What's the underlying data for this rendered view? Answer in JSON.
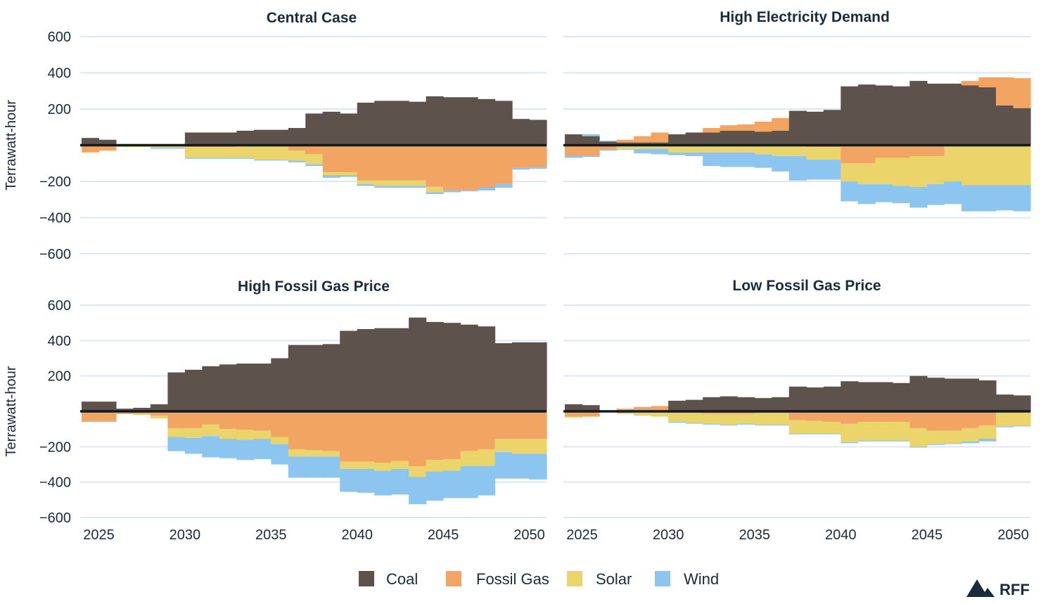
{
  "chart_data": {
    "type": "area",
    "style": "stacked step area, positive above zero and negative below zero",
    "colors": {
      "Coal": "#5e524c",
      "Fossil Gas": "#f2a462",
      "Solar": "#ebd56a",
      "Wind": "#8cc5ef",
      "zero_line": "#0d1b26",
      "grid": "#dde7f1"
    },
    "series_names": [
      "Coal",
      "Fossil Gas",
      "Solar",
      "Wind"
    ],
    "ylabel": "Terrawatt-hour",
    "ylim": [
      -600,
      600
    ],
    "yticks": [
      600,
      400,
      200,
      -200,
      -400,
      -600
    ],
    "ytick_labels": [
      "600",
      "400",
      "200",
      "−200",
      "−400",
      "−600"
    ],
    "xlim": [
      2024,
      2051
    ],
    "xticks": [
      2025,
      2030,
      2035,
      2040,
      2045,
      2050
    ],
    "xtick_labels": [
      "2025",
      "2030",
      "2035",
      "2040",
      "2045",
      "2050"
    ],
    "years": [
      2024,
      2025,
      2026,
      2027,
      2028,
      2029,
      2030,
      2031,
      2032,
      2033,
      2034,
      2035,
      2036,
      2037,
      2038,
      2039,
      2040,
      2041,
      2042,
      2043,
      2044,
      2045,
      2046,
      2047,
      2048,
      2049,
      2050
    ],
    "panels": [
      {
        "title": "Central Case",
        "positive": {
          "Coal": [
            40,
            30,
            0,
            0,
            0,
            0,
            70,
            70,
            70,
            80,
            85,
            85,
            95,
            175,
            185,
            175,
            235,
            245,
            245,
            240,
            270,
            265,
            265,
            255,
            245,
            145,
            140
          ],
          "Fossil Gas": [
            0,
            0,
            0,
            0,
            0,
            0,
            0,
            0,
            0,
            0,
            0,
            0,
            0,
            0,
            0,
            0,
            0,
            0,
            0,
            0,
            0,
            0,
            0,
            0,
            0,
            0,
            0
          ],
          "Solar": [
            0,
            0,
            0,
            0,
            0,
            0,
            0,
            0,
            0,
            0,
            0,
            0,
            0,
            0,
            0,
            0,
            0,
            0,
            0,
            0,
            0,
            0,
            0,
            0,
            0,
            0,
            0
          ],
          "Wind": [
            0,
            0,
            0,
            0,
            0,
            0,
            0,
            0,
            0,
            0,
            0,
            0,
            0,
            0,
            0,
            0,
            0,
            0,
            0,
            0,
            0,
            0,
            0,
            0,
            0,
            0,
            0
          ]
        },
        "negative": {
          "Coal": [
            0,
            0,
            0,
            0,
            0,
            0,
            0,
            0,
            0,
            0,
            0,
            0,
            0,
            0,
            0,
            0,
            0,
            0,
            0,
            0,
            0,
            0,
            0,
            0,
            0,
            0,
            0
          ],
          "Fossil Gas": [
            -40,
            -30,
            0,
            0,
            0,
            0,
            -10,
            -10,
            -10,
            0,
            0,
            0,
            -30,
            -50,
            -150,
            -150,
            -195,
            -195,
            -195,
            -195,
            -230,
            -250,
            -250,
            -235,
            -215,
            -125,
            -120
          ],
          "Solar": [
            0,
            0,
            -10,
            -10,
            -15,
            -15,
            -60,
            -60,
            -60,
            -70,
            -80,
            -80,
            -55,
            -55,
            -15,
            -15,
            -20,
            -30,
            -30,
            -30,
            -30,
            0,
            0,
            0,
            0,
            0,
            0
          ],
          "Wind": [
            0,
            0,
            0,
            0,
            -5,
            -5,
            -5,
            -5,
            -5,
            -5,
            -5,
            -5,
            -10,
            -10,
            -15,
            -10,
            -10,
            -10,
            -10,
            -10,
            -10,
            -10,
            -5,
            -15,
            -20,
            -10,
            -10
          ]
        }
      },
      {
        "title": "High Electricity Demand",
        "positive": {
          "Coal": [
            60,
            50,
            20,
            15,
            15,
            15,
            60,
            70,
            70,
            80,
            80,
            75,
            80,
            190,
            185,
            195,
            325,
            335,
            330,
            325,
            355,
            340,
            340,
            330,
            320,
            220,
            205
          ],
          "Fossil Gas": [
            0,
            0,
            0,
            15,
            35,
            55,
            0,
            0,
            25,
            30,
            35,
            55,
            70,
            0,
            0,
            0,
            0,
            0,
            0,
            0,
            0,
            0,
            0,
            25,
            55,
            155,
            165
          ],
          "Solar": [
            0,
            0,
            0,
            0,
            0,
            0,
            0,
            0,
            0,
            0,
            0,
            0,
            0,
            0,
            0,
            0,
            0,
            0,
            0,
            0,
            0,
            0,
            0,
            0,
            0,
            0,
            0
          ],
          "Wind": [
            0,
            10,
            5,
            0,
            0,
            0,
            0,
            0,
            0,
            0,
            0,
            0,
            0,
            0,
            0,
            0,
            0,
            0,
            0,
            0,
            0,
            0,
            0,
            0,
            0,
            0,
            0
          ]
        },
        "negative": {
          "Coal": [
            0,
            0,
            0,
            0,
            0,
            0,
            0,
            0,
            0,
            0,
            0,
            0,
            0,
            0,
            0,
            0,
            0,
            0,
            0,
            0,
            0,
            0,
            0,
            0,
            0,
            0,
            0
          ],
          "Fossil Gas": [
            -60,
            -60,
            -25,
            0,
            0,
            0,
            0,
            0,
            0,
            0,
            0,
            0,
            0,
            0,
            -10,
            -10,
            -100,
            -100,
            -70,
            -70,
            -60,
            -60,
            0,
            0,
            0,
            0,
            0
          ],
          "Solar": [
            0,
            0,
            0,
            -20,
            -20,
            -20,
            -40,
            -40,
            -40,
            -40,
            -40,
            -50,
            -60,
            -60,
            -70,
            -70,
            -100,
            -115,
            -145,
            -155,
            -170,
            -155,
            -200,
            -220,
            -220,
            -220,
            -220
          ],
          "Wind": [
            -10,
            -5,
            -5,
            -5,
            -25,
            -30,
            -15,
            -20,
            -75,
            -80,
            -80,
            -75,
            -85,
            -135,
            -110,
            -110,
            -110,
            -110,
            -100,
            -95,
            -115,
            -115,
            -125,
            -145,
            -145,
            -140,
            -145
          ]
        }
      },
      {
        "title": "High Fossil Gas Price",
        "positive": {
          "Coal": [
            55,
            55,
            15,
            20,
            40,
            220,
            235,
            255,
            265,
            270,
            270,
            300,
            375,
            375,
            380,
            455,
            465,
            470,
            470,
            530,
            505,
            500,
            490,
            480,
            385,
            390,
            390
          ],
          "Fossil Gas": [
            0,
            0,
            0,
            0,
            0,
            0,
            0,
            0,
            0,
            0,
            0,
            0,
            0,
            0,
            0,
            0,
            0,
            0,
            0,
            0,
            0,
            0,
            0,
            0,
            0,
            0,
            0
          ],
          "Solar": [
            0,
            0,
            0,
            0,
            0,
            0,
            0,
            0,
            0,
            0,
            0,
            0,
            0,
            0,
            0,
            0,
            0,
            0,
            0,
            0,
            0,
            0,
            0,
            0,
            0,
            0,
            0
          ],
          "Wind": [
            0,
            0,
            0,
            0,
            0,
            0,
            0,
            0,
            0,
            0,
            0,
            0,
            0,
            0,
            0,
            0,
            0,
            0,
            0,
            0,
            0,
            0,
            0,
            0,
            0,
            0,
            0
          ]
        },
        "negative": {
          "Coal": [
            0,
            0,
            0,
            0,
            0,
            0,
            0,
            0,
            0,
            0,
            0,
            0,
            0,
            0,
            0,
            0,
            0,
            0,
            0,
            0,
            0,
            0,
            0,
            0,
            0,
            0,
            0
          ],
          "Fossil Gas": [
            -55,
            -55,
            -15,
            -15,
            -25,
            -95,
            -95,
            -75,
            -100,
            -105,
            -110,
            -145,
            -215,
            -220,
            -225,
            -285,
            -285,
            -290,
            -280,
            -310,
            -275,
            -270,
            -225,
            -215,
            -155,
            -155,
            -155
          ],
          "Solar": [
            0,
            0,
            0,
            -5,
            -15,
            -50,
            -55,
            -65,
            -55,
            -55,
            -45,
            -40,
            -40,
            -35,
            -30,
            -40,
            -40,
            -45,
            -45,
            -60,
            -65,
            -65,
            -85,
            -95,
            -75,
            -85,
            -85
          ],
          "Wind": [
            -5,
            -5,
            0,
            0,
            0,
            -80,
            -90,
            -120,
            -110,
            -115,
            -115,
            -115,
            -120,
            -120,
            -120,
            -130,
            -135,
            -140,
            -145,
            -155,
            -165,
            -155,
            -180,
            -165,
            -150,
            -140,
            -145
          ]
        }
      },
      {
        "title": "Low Fossil Gas Price",
        "positive": {
          "Coal": [
            40,
            35,
            0,
            0,
            0,
            0,
            60,
            65,
            80,
            85,
            80,
            75,
            80,
            140,
            135,
            140,
            170,
            165,
            165,
            160,
            200,
            190,
            185,
            185,
            175,
            95,
            90
          ],
          "Fossil Gas": [
            0,
            0,
            0,
            15,
            25,
            30,
            0,
            0,
            0,
            0,
            0,
            0,
            0,
            0,
            0,
            0,
            0,
            0,
            0,
            0,
            0,
            0,
            0,
            0,
            0,
            0,
            0
          ],
          "Solar": [
            0,
            0,
            0,
            0,
            0,
            0,
            0,
            0,
            0,
            0,
            0,
            0,
            0,
            0,
            0,
            0,
            0,
            0,
            0,
            0,
            0,
            0,
            0,
            0,
            0,
            0,
            0
          ],
          "Wind": [
            0,
            0,
            0,
            0,
            0,
            0,
            0,
            0,
            0,
            0,
            0,
            0,
            0,
            0,
            0,
            0,
            0,
            0,
            0,
            0,
            0,
            0,
            0,
            0,
            0,
            0,
            0
          ]
        },
        "negative": {
          "Coal": [
            0,
            0,
            0,
            0,
            0,
            0,
            0,
            0,
            0,
            0,
            0,
            0,
            0,
            0,
            0,
            0,
            0,
            0,
            0,
            0,
            0,
            0,
            0,
            0,
            0,
            0,
            0
          ],
          "Fossil Gas": [
            -30,
            -30,
            0,
            0,
            0,
            0,
            -10,
            -10,
            -15,
            -15,
            -15,
            -10,
            -10,
            -50,
            -55,
            -60,
            -70,
            -60,
            -60,
            -60,
            -95,
            -110,
            -110,
            -95,
            -80,
            0,
            0
          ],
          "Solar": [
            -5,
            0,
            -5,
            -15,
            -25,
            -30,
            -50,
            -55,
            -55,
            -60,
            -55,
            -65,
            -65,
            -75,
            -70,
            -65,
            -105,
            -105,
            -105,
            -105,
            -105,
            -75,
            -70,
            -75,
            -75,
            -85,
            -80
          ],
          "Wind": [
            0,
            0,
            0,
            0,
            0,
            0,
            -5,
            -5,
            -5,
            -5,
            -5,
            -5,
            -5,
            -5,
            -5,
            -5,
            -5,
            -5,
            -5,
            -5,
            -5,
            -5,
            -5,
            -10,
            -15,
            -5,
            -5
          ]
        }
      }
    ],
    "legend": {
      "position": "bottom-center",
      "items": [
        "Coal",
        "Fossil Gas",
        "Solar",
        "Wind"
      ]
    }
  },
  "brand": {
    "label": "RFF",
    "logo_icon": "mountain-logo-icon"
  }
}
